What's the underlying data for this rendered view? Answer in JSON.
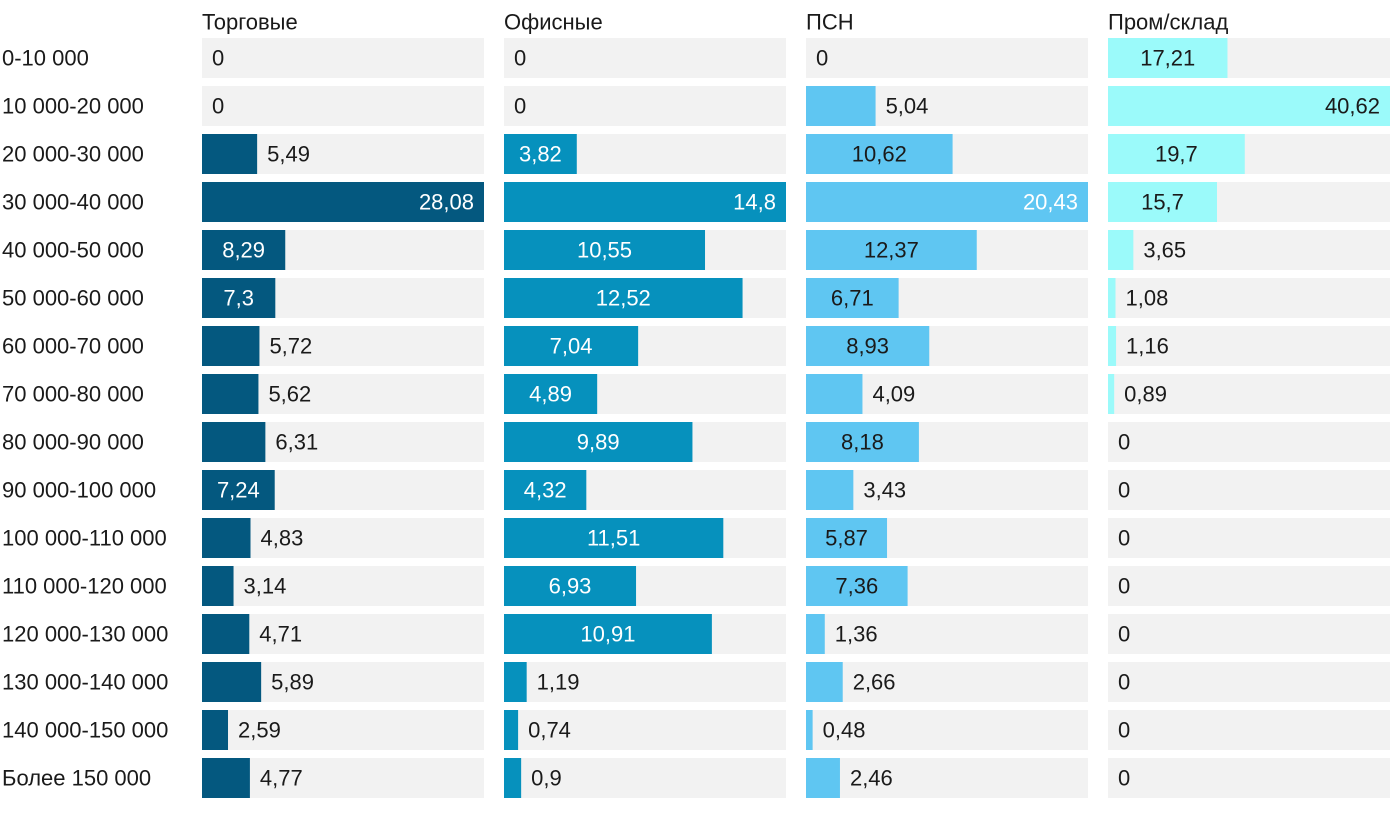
{
  "chart_data": {
    "type": "bar",
    "orientation": "horizontal",
    "layout": "small-multiples",
    "categories": [
      "0-10 000",
      "10 000-20 000",
      "20 000-30 000",
      "30 000-40 000",
      "40 000-50 000",
      "50 000-60 000",
      "60 000-70 000",
      "70 000-80 000",
      "80 000-90 000",
      "90 000-100 000",
      "100 000-110 000",
      "110 000-120 000",
      "120 000-130 000",
      "130 000-140 000",
      "140 000-150 000",
      "Более 150 000"
    ],
    "series": [
      {
        "name": "Торговые",
        "color": "#04587f",
        "values": [
          0,
          0,
          5.49,
          28.08,
          8.29,
          7.3,
          5.72,
          5.62,
          6.31,
          7.24,
          4.83,
          3.14,
          4.71,
          5.89,
          2.59,
          4.77
        ],
        "labels": [
          "0",
          "0",
          "5,49",
          "28,08",
          "8,29",
          "7,3",
          "5,72",
          "5,62",
          "6,31",
          "7,24",
          "4,83",
          "3,14",
          "4,71",
          "5,89",
          "2,59",
          "4,77"
        ]
      },
      {
        "name": "Офисные",
        "color": "#0691bd",
        "values": [
          0,
          0,
          3.82,
          14.8,
          10.55,
          12.52,
          7.04,
          4.89,
          9.89,
          4.32,
          11.51,
          6.93,
          10.91,
          1.19,
          0.74,
          0.9
        ],
        "labels": [
          "0",
          "0",
          "3,82",
          "14,8",
          "10,55",
          "12,52",
          "7,04",
          "4,89",
          "9,89",
          "4,32",
          "11,51",
          "6,93",
          "10,91",
          "1,19",
          "0,74",
          "0,9"
        ]
      },
      {
        "name": "ПСН",
        "color": "#5fc6f2",
        "values": [
          0,
          5.04,
          10.62,
          20.43,
          12.37,
          6.71,
          8.93,
          4.09,
          8.18,
          3.43,
          5.87,
          7.36,
          1.36,
          2.66,
          0.48,
          2.46
        ],
        "labels": [
          "0",
          "5,04",
          "10,62",
          "20,43",
          "12,37",
          "6,71",
          "8,93",
          "4,09",
          "8,18",
          "3,43",
          "5,87",
          "7,36",
          "1,36",
          "2,66",
          "0,48",
          "2,46"
        ]
      },
      {
        "name": "Пром/склад",
        "color": "#9bfafa",
        "values": [
          17.21,
          40.62,
          19.7,
          15.7,
          3.65,
          1.08,
          1.16,
          0.89,
          0,
          0,
          0,
          0,
          0,
          0,
          0,
          0
        ],
        "labels": [
          "17,21",
          "40,62",
          "19,7",
          "15,7",
          "3,65",
          "1,08",
          "1,16",
          "0,89",
          "0",
          "0",
          "0",
          "0",
          "0",
          "0",
          "0",
          "0"
        ]
      }
    ],
    "grid": false,
    "legend": "none",
    "value_labels": true
  }
}
